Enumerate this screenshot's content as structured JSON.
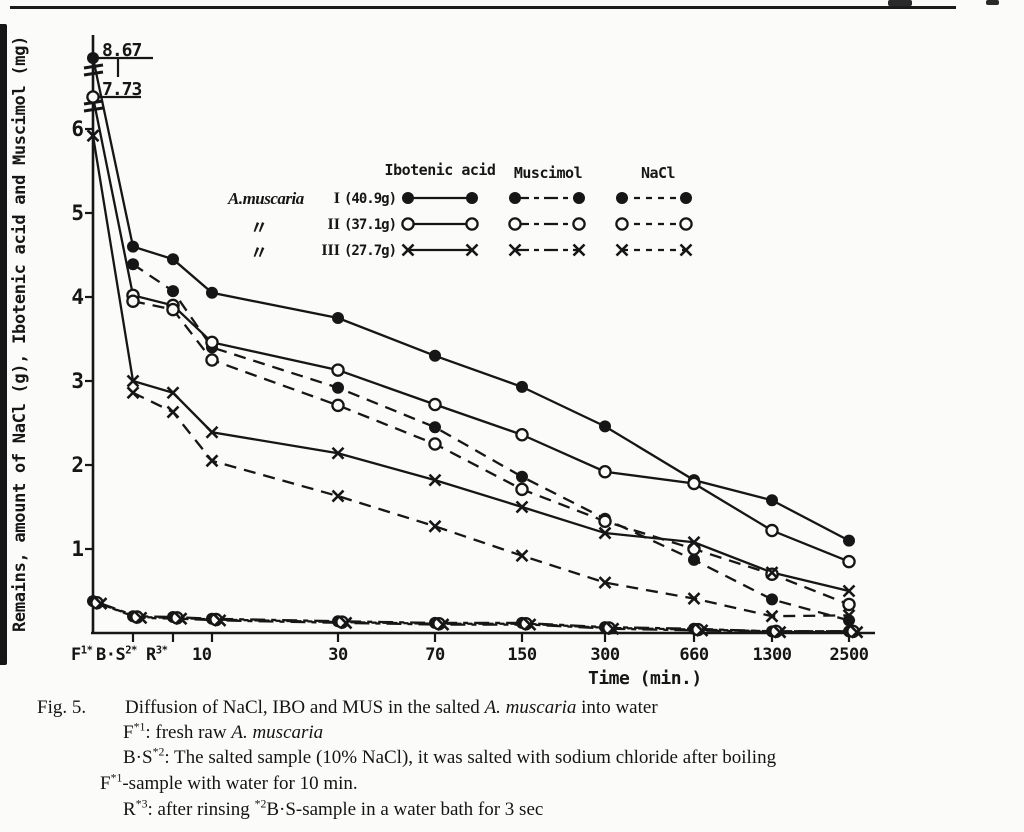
{
  "axes": {
    "y_label": "Remains, amount of NaCl (g), Ibotenic acid and Muscimol (mg)",
    "x_label": "Time (min.)",
    "y_ticks": [
      "6",
      "5",
      "4",
      "3",
      "2",
      "1"
    ],
    "x_ticks": [
      {
        "base": "F",
        "sup": "1*"
      },
      {
        "base": "B·S",
        "sup": "2*"
      },
      {
        "base": "R",
        "sup": "3*"
      },
      {
        "base": "10",
        "sup": ""
      },
      {
        "base": "30",
        "sup": ""
      },
      {
        "base": "70",
        "sup": ""
      },
      {
        "base": "150",
        "sup": ""
      },
      {
        "base": "300",
        "sup": ""
      },
      {
        "base": "660",
        "sup": ""
      },
      {
        "base": "1300",
        "sup": ""
      },
      {
        "base": "2500",
        "sup": ""
      }
    ]
  },
  "annotations": {
    "point1": "8.67",
    "point2": "7.73"
  },
  "legend": {
    "headers": [
      "Ibotenic acid",
      "Muscimol",
      "NaCl"
    ],
    "rows": [
      {
        "species": "A.muscaria",
        "numeral": "I",
        "weight": "(40.9g)"
      },
      {
        "species": "〃",
        "numeral": "II",
        "weight": "(37.1g)"
      },
      {
        "species": "〃",
        "numeral": "III",
        "weight": "(27.7g)"
      }
    ]
  },
  "chart_data": {
    "type": "line",
    "title": "Diffusion of NaCl, IBO and MUS in the salted A. muscaria into water",
    "xlabel": "Time (min.)",
    "ylabel": "Remains, amount of NaCl (g), Ibotenic acid and Muscimol (mg)",
    "categories": [
      "F",
      "B·S",
      "R",
      "10",
      "30",
      "70",
      "150",
      "300",
      "660",
      "1300",
      "2500"
    ],
    "x_scale": "first three treatments categorical, then log10 of time in minutes",
    "ylim": [
      0,
      8.67
    ],
    "y_axis_break": "between 6.2 and 7.7 (double slash marks on axis)",
    "grid": false,
    "legend_position": "upper right inside plot",
    "series": [
      {
        "name": "Ibotenic acid I",
        "marker": "filled-circle",
        "line": "solid",
        "values": [
          8.67,
          4.6,
          4.45,
          4.05,
          3.75,
          3.3,
          2.93,
          2.46,
          1.82,
          1.58,
          1.1
        ]
      },
      {
        "name": "Ibotenic acid II",
        "marker": "open-circle",
        "line": "solid",
        "values": [
          7.73,
          4.02,
          3.9,
          3.46,
          3.13,
          2.72,
          2.36,
          1.92,
          1.78,
          1.22,
          0.85
        ]
      },
      {
        "name": "Ibotenic acid III",
        "marker": "cross",
        "line": "solid",
        "values": [
          5.92,
          3.0,
          2.86,
          2.39,
          2.14,
          1.82,
          1.5,
          1.19,
          1.08,
          0.72,
          0.5
        ]
      },
      {
        "name": "Muscimol I",
        "marker": "filled-circle",
        "line": "dashdot",
        "values": [
          null,
          4.39,
          4.07,
          3.4,
          2.92,
          2.45,
          1.86,
          1.36,
          0.87,
          0.4,
          0.15
        ]
      },
      {
        "name": "Muscimol II",
        "marker": "open-circle",
        "line": "dashdot",
        "values": [
          null,
          3.95,
          3.85,
          3.25,
          2.71,
          2.25,
          1.71,
          1.33,
          1.0,
          0.7,
          0.34
        ]
      },
      {
        "name": "Muscimol III",
        "marker": "cross",
        "line": "dashdot",
        "values": [
          null,
          2.86,
          2.63,
          2.05,
          1.63,
          1.27,
          0.92,
          0.6,
          0.41,
          0.2,
          0.21
        ]
      },
      {
        "name": "NaCl I",
        "marker": "filled-circle",
        "line": "dashed",
        "values": [
          0.38,
          0.2,
          0.19,
          0.17,
          0.14,
          0.12,
          0.12,
          0.07,
          0.05,
          0.02,
          0.02
        ]
      },
      {
        "name": "NaCl II",
        "marker": "open-circle",
        "line": "dashed",
        "values": [
          0.36,
          0.19,
          0.18,
          0.16,
          0.13,
          0.11,
          0.11,
          0.06,
          0.04,
          0.02,
          0.02
        ]
      },
      {
        "name": "NaCl III",
        "marker": "cross",
        "line": "dashed",
        "values": [
          0.35,
          0.18,
          0.17,
          0.15,
          0.12,
          0.1,
          0.1,
          0.05,
          0.03,
          0.01,
          0.01
        ]
      }
    ],
    "annotations": [
      {
        "text": "8.67",
        "series": "Ibotenic acid I",
        "at": "F"
      },
      {
        "text": "7.73",
        "series": "Ibotenic acid II",
        "at": "F"
      }
    ]
  },
  "caption": {
    "fig_label": "Fig. 5.",
    "title_pre": "Diffusion of NaCl, IBO and MUS in the salted ",
    "title_italic": "A. muscaria",
    "title_post": " into water",
    "def1_base": "F",
    "def1_sup": "*1",
    "def1_text": ": fresh raw ",
    "def1_italic": "A. muscaria",
    "def2_base": "B·S",
    "def2_sup": "*2",
    "def2_text": ": The salted sample (10% NaCl), it was salted with sodium chloride after boiling",
    "def2b_base": "F",
    "def2b_sup": "*1",
    "def2b_text": "-sample with water for 10 min.",
    "def3_base": "R",
    "def3_sup": "*3",
    "def3_text": ": after rinsing ",
    "def3_sup2": "*2",
    "def3_text2": "B·S-sample in a water bath for 3 sec"
  }
}
